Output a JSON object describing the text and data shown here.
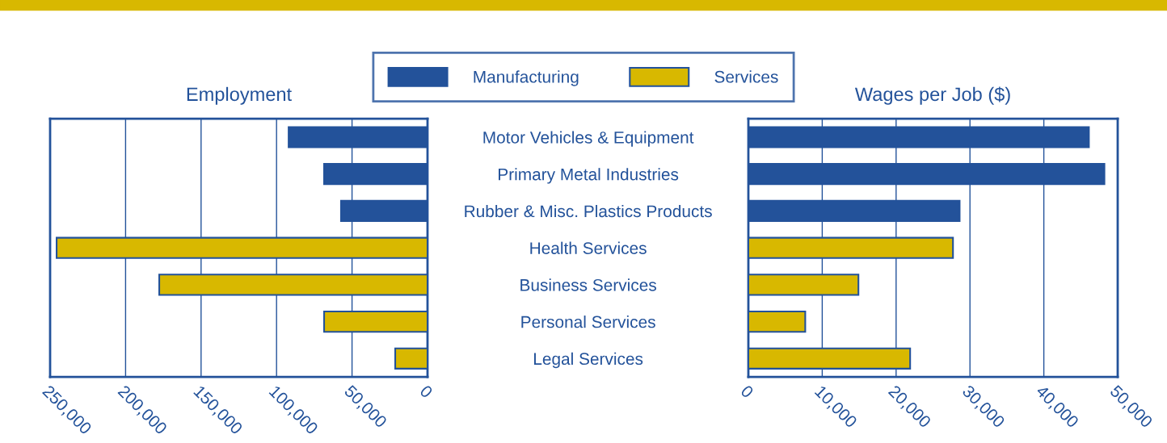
{
  "chart_data": [
    {
      "type": "bar",
      "orientation": "horizontal",
      "title": "Employment",
      "categories": [
        "Motor Vehicles & Equipment",
        "Primary Metal Industries",
        "Rubber & Misc. Plastics Products",
        "Health Services",
        "Business Services",
        "Personal Services",
        "Legal Services"
      ],
      "series": [
        {
          "name": "Manufacturing",
          "color": "#23529a",
          "values": [
            92000,
            68500,
            57300,
            null,
            null,
            null,
            null
          ]
        },
        {
          "name": "Services",
          "color": "#d8b800",
          "values": [
            null,
            null,
            null,
            245700,
            177700,
            68500,
            21400
          ]
        }
      ],
      "xlim": [
        250000,
        0
      ],
      "xticks": [
        {
          "value": 250000,
          "label": "250,000"
        },
        {
          "value": 200000,
          "label": "200,000"
        },
        {
          "value": 150000,
          "label": "150,000"
        },
        {
          "value": 100000,
          "label": "100,000"
        },
        {
          "value": 50000,
          "label": "50,000"
        },
        0
      ],
      "grid": "x",
      "legend": "top"
    },
    {
      "type": "bar",
      "orientation": "horizontal",
      "title": "Wages per Job ($)",
      "categories": [
        null,
        null,
        null,
        null,
        null,
        null,
        null
      ],
      "series": [
        {
          "color": "#23529a",
          "values": [
            46100,
            48200,
            28600,
            null,
            null,
            null,
            null
          ]
        },
        {
          "color": "#d8b800",
          "values": [
            null,
            null,
            null,
            27700,
            14900,
            7700,
            21900
          ]
        }
      ],
      "xlim": [
        0,
        50000
      ],
      "xticks": [
        0,
        {
          "value": 10000,
          "label": "10,000"
        },
        {
          "value": 20000,
          "label": "20,000"
        },
        {
          "value": 30000,
          "label": "30,000"
        },
        {
          "value": 40000,
          "label": "40,000"
        },
        {
          "value": 50000,
          "label": "50,000"
        }
      ],
      "grid": "x",
      "tick_labels": "x"
    }
  ]
}
